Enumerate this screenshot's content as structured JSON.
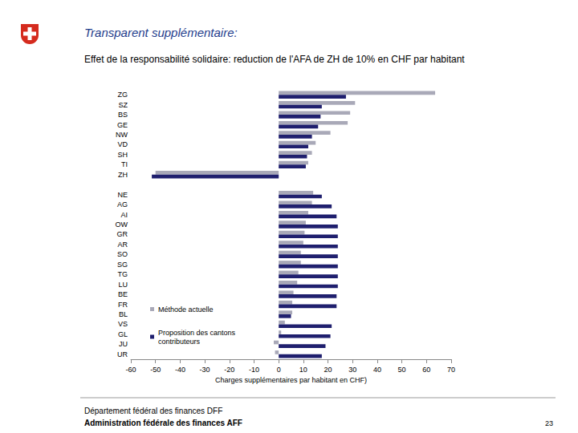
{
  "chart_data": {
    "type": "bar",
    "orientation": "horizontal",
    "title": "Transparent supplémentaire:",
    "subtitle": "Effet de la responsabilité solidaire: reduction de l'AFA de ZH de 10% en CHF par habitant",
    "xlabel": "Charges supplémentaires par habitant en CHF)",
    "categories": [
      "ZG",
      "SZ",
      "BS",
      "GE",
      "NW",
      "VD",
      "SH",
      "TI",
      "ZH",
      null,
      "NE",
      "AG",
      "AI",
      "OW",
      "GR",
      "AR",
      "SO",
      "SG",
      "TG",
      "LU",
      "BE",
      "FR",
      "BL",
      "VS",
      "GL",
      "JU",
      "UR"
    ],
    "series": [
      {
        "name": "Méthode actuelle",
        "color": "#a9a9b8",
        "values": [
          63.5,
          31,
          29,
          28,
          21,
          15,
          13.5,
          12,
          -50,
          null,
          14,
          13.5,
          12,
          11,
          10.5,
          10,
          9,
          9,
          8,
          7.5,
          6,
          5.5,
          5.5,
          2.5,
          1,
          -2,
          -1.5
        ]
      },
      {
        "name": "Proposition des cantons contributeurs",
        "color": "#1f1f6e",
        "values": [
          27.3,
          17.5,
          17,
          16,
          13.5,
          12,
          11.5,
          11,
          -51.5,
          null,
          17.5,
          21.5,
          23.5,
          24,
          24,
          24,
          24,
          24,
          24,
          24,
          23.5,
          23.5,
          5,
          21.5,
          21,
          19,
          17.5
        ]
      }
    ],
    "xlim": [
      -60,
      70
    ],
    "xticks": [
      -60,
      -50,
      -40,
      -30,
      -20,
      -10,
      0,
      10,
      20,
      30,
      40,
      50,
      60,
      70
    ],
    "grid": false,
    "legend": "bottom-left"
  },
  "footer": {
    "department": "Département fédéral des finances DFF",
    "office": "Administration fédérale des finances AFF",
    "page": "23"
  }
}
